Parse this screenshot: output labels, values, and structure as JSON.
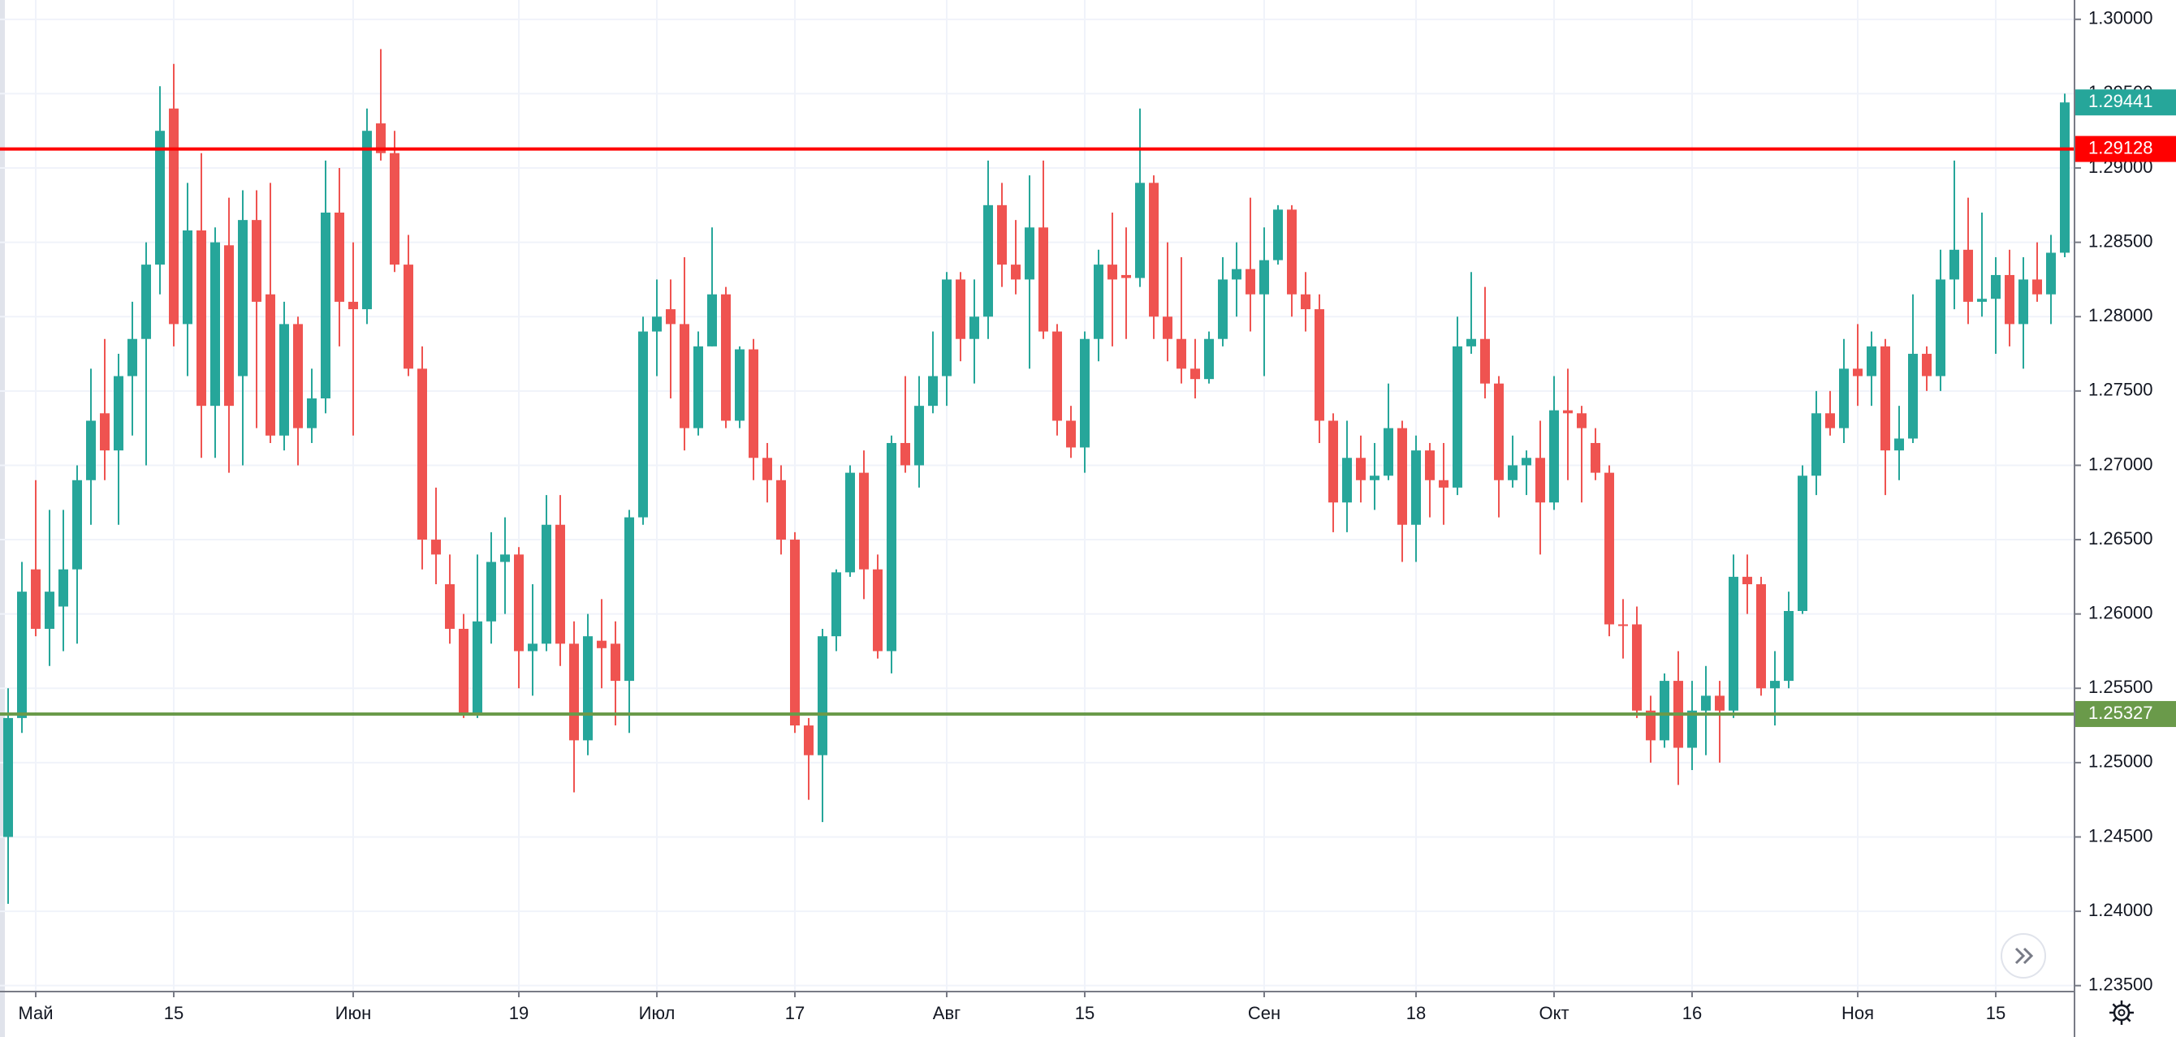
{
  "chart_data": {
    "type": "candlestick",
    "categories": [
      null,
      null,
      "Май",
      null,
      null,
      null,
      null,
      null,
      null,
      null,
      null,
      null,
      "15",
      null,
      null,
      null,
      null,
      null,
      null,
      null,
      null,
      null,
      null,
      null,
      null,
      "Июн",
      null,
      null,
      null,
      null,
      null,
      null,
      null,
      null,
      null,
      null,
      null,
      "19",
      null,
      null,
      null,
      null,
      null,
      null,
      null,
      null,
      null,
      "Июл",
      null,
      null,
      null,
      null,
      null,
      null,
      null,
      null,
      null,
      "17",
      null,
      null,
      null,
      null,
      null,
      null,
      null,
      null,
      null,
      null,
      "Авг",
      null,
      null,
      null,
      null,
      null,
      null,
      null,
      null,
      null,
      "15",
      null,
      null,
      null,
      null,
      null,
      null,
      null,
      null,
      null,
      null,
      null,
      null,
      "Сен",
      null,
      null,
      null,
      null,
      null,
      null,
      null,
      null,
      null,
      null,
      "18",
      null,
      null,
      null,
      null,
      null,
      null,
      null,
      null,
      null,
      "Окт",
      null,
      null,
      null,
      null,
      null,
      null,
      null,
      null,
      null,
      "16",
      null,
      null,
      null,
      null,
      null,
      null,
      null,
      null,
      null,
      null,
      null,
      "Ноя",
      null,
      null,
      null,
      null,
      null,
      null,
      null,
      null,
      null,
      "15",
      null,
      null,
      null,
      null,
      null
    ],
    "ohlc": [
      [
        1.245,
        1.255,
        1.2405,
        1.253
      ],
      [
        1.253,
        1.2635,
        1.252,
        1.2615
      ],
      [
        1.263,
        1.269,
        1.2585,
        1.259
      ],
      [
        1.259,
        1.267,
        1.2565,
        1.2615
      ],
      [
        1.2605,
        1.267,
        1.2575,
        1.263
      ],
      [
        1.263,
        1.27,
        1.258,
        1.269
      ],
      [
        1.269,
        1.2765,
        1.266,
        1.273
      ],
      [
        1.2735,
        1.2785,
        1.269,
        1.271
      ],
      [
        1.271,
        1.2775,
        1.266,
        1.276
      ],
      [
        1.276,
        1.281,
        1.272,
        1.2785
      ],
      [
        1.2785,
        1.285,
        1.27,
        1.2835
      ],
      [
        1.2835,
        1.2955,
        1.2815,
        1.2925
      ],
      [
        1.294,
        1.297,
        1.278,
        1.2795
      ],
      [
        1.2795,
        1.289,
        1.276,
        1.2858
      ],
      [
        1.2858,
        1.291,
        1.2705,
        1.274
      ],
      [
        1.274,
        1.286,
        1.2705,
        1.285
      ],
      [
        1.2848,
        1.288,
        1.2695,
        1.274
      ],
      [
        1.276,
        1.2885,
        1.27,
        1.2865
      ],
      [
        1.2865,
        1.2885,
        1.2725,
        1.281
      ],
      [
        1.2815,
        1.289,
        1.2715,
        1.272
      ],
      [
        1.272,
        1.281,
        1.271,
        1.2795
      ],
      [
        1.2795,
        1.28,
        1.27,
        1.2725
      ],
      [
        1.2725,
        1.2765,
        1.2715,
        1.2745
      ],
      [
        1.2745,
        1.2905,
        1.2735,
        1.287
      ],
      [
        1.287,
        1.29,
        1.278,
        1.281
      ],
      [
        1.281,
        1.285,
        1.272,
        1.2805
      ],
      [
        1.2805,
        1.294,
        1.2795,
        1.2925
      ],
      [
        1.293,
        1.298,
        1.2905,
        1.291
      ],
      [
        1.291,
        1.2925,
        1.283,
        1.2835
      ],
      [
        1.2835,
        1.2855,
        1.276,
        1.2765
      ],
      [
        1.2765,
        1.278,
        1.263,
        1.265
      ],
      [
        1.265,
        1.2685,
        1.262,
        1.264
      ],
      [
        1.262,
        1.264,
        1.258,
        1.259
      ],
      [
        1.259,
        1.26,
        1.253,
        1.2533
      ],
      [
        1.2533,
        1.264,
        1.253,
        1.2595
      ],
      [
        1.2595,
        1.2655,
        1.258,
        1.2635
      ],
      [
        1.2635,
        1.2665,
        1.26,
        1.264
      ],
      [
        1.264,
        1.2645,
        1.255,
        1.2575
      ],
      [
        1.2575,
        1.262,
        1.2545,
        1.258
      ],
      [
        1.258,
        1.268,
        1.2575,
        1.266
      ],
      [
        1.266,
        1.268,
        1.2565,
        1.258
      ],
      [
        1.258,
        1.2595,
        1.248,
        1.2515
      ],
      [
        1.2515,
        1.26,
        1.2505,
        1.2585
      ],
      [
        1.2582,
        1.261,
        1.255,
        1.2577
      ],
      [
        1.258,
        1.2595,
        1.2525,
        1.2555
      ],
      [
        1.2555,
        1.267,
        1.252,
        1.2665
      ],
      [
        1.2665,
        1.28,
        1.266,
        1.279
      ],
      [
        1.279,
        1.2825,
        1.276,
        1.28
      ],
      [
        1.2805,
        1.2825,
        1.2745,
        1.2795
      ],
      [
        1.2795,
        1.284,
        1.271,
        1.2725
      ],
      [
        1.2725,
        1.279,
        1.272,
        1.278
      ],
      [
        1.278,
        1.286,
        1.278,
        1.2815
      ],
      [
        1.2815,
        1.282,
        1.2725,
        1.273
      ],
      [
        1.273,
        1.278,
        1.2725,
        1.2778
      ],
      [
        1.2778,
        1.2785,
        1.269,
        1.2705
      ],
      [
        1.2705,
        1.2715,
        1.2675,
        1.269
      ],
      [
        1.269,
        1.27,
        1.264,
        1.265
      ],
      [
        1.265,
        1.2655,
        1.252,
        1.2525
      ],
      [
        1.2525,
        1.253,
        1.2475,
        1.2505
      ],
      [
        1.2505,
        1.259,
        1.246,
        1.2585
      ],
      [
        1.2585,
        1.263,
        1.2575,
        1.2628
      ],
      [
        1.2628,
        1.27,
        1.2625,
        1.2695
      ],
      [
        1.2695,
        1.271,
        1.261,
        1.263
      ],
      [
        1.263,
        1.264,
        1.257,
        1.2575
      ],
      [
        1.2575,
        1.272,
        1.256,
        1.2715
      ],
      [
        1.2715,
        1.276,
        1.2695,
        1.27
      ],
      [
        1.27,
        1.276,
        1.2685,
        1.274
      ],
      [
        1.274,
        1.279,
        1.2735,
        1.276
      ],
      [
        1.276,
        1.283,
        1.274,
        1.2825
      ],
      [
        1.2825,
        1.283,
        1.277,
        1.2785
      ],
      [
        1.2785,
        1.2825,
        1.2755,
        1.28
      ],
      [
        1.28,
        1.2905,
        1.2785,
        1.2875
      ],
      [
        1.2875,
        1.289,
        1.282,
        1.2835
      ],
      [
        1.2835,
        1.2865,
        1.2815,
        1.2825
      ],
      [
        1.2825,
        1.2895,
        1.2765,
        1.286
      ],
      [
        1.286,
        1.2905,
        1.2785,
        1.279
      ],
      [
        1.279,
        1.2795,
        1.272,
        1.273
      ],
      [
        1.273,
        1.274,
        1.2705,
        1.2712
      ],
      [
        1.2712,
        1.279,
        1.2695,
        1.2785
      ],
      [
        1.2785,
        1.2845,
        1.277,
        1.2835
      ],
      [
        1.2835,
        1.287,
        1.278,
        1.2825
      ],
      [
        1.2828,
        1.286,
        1.2785,
        1.2826
      ],
      [
        1.2826,
        1.294,
        1.282,
        1.289
      ],
      [
        1.289,
        1.2895,
        1.2785,
        1.28
      ],
      [
        1.28,
        1.285,
        1.277,
        1.2785
      ],
      [
        1.2785,
        1.284,
        1.2755,
        1.2765
      ],
      [
        1.2765,
        1.2785,
        1.2745,
        1.2758
      ],
      [
        1.2758,
        1.279,
        1.2755,
        1.2785
      ],
      [
        1.2785,
        1.284,
        1.278,
        1.2825
      ],
      [
        1.2825,
        1.285,
        1.28,
        1.2832
      ],
      [
        1.2832,
        1.288,
        1.279,
        1.2815
      ],
      [
        1.2815,
        1.286,
        1.276,
        1.2838
      ],
      [
        1.2838,
        1.2875,
        1.2835,
        1.2872
      ],
      [
        1.2872,
        1.2875,
        1.28,
        1.2815
      ],
      [
        1.2815,
        1.283,
        1.279,
        1.2805
      ],
      [
        1.2805,
        1.2815,
        1.2715,
        1.273
      ],
      [
        1.273,
        1.2735,
        1.2655,
        1.2675
      ],
      [
        1.2675,
        1.273,
        1.2655,
        1.2705
      ],
      [
        1.2705,
        1.272,
        1.2675,
        1.269
      ],
      [
        1.269,
        1.2715,
        1.267,
        1.2693
      ],
      [
        1.2693,
        1.2755,
        1.269,
        1.2725
      ],
      [
        1.2725,
        1.273,
        1.2635,
        1.266
      ],
      [
        1.266,
        1.272,
        1.2635,
        1.271
      ],
      [
        1.271,
        1.2715,
        1.2665,
        1.269
      ],
      [
        1.269,
        1.2715,
        1.266,
        1.2685
      ],
      [
        1.2685,
        1.28,
        1.268,
        1.278
      ],
      [
        1.278,
        1.283,
        1.2775,
        1.2785
      ],
      [
        1.2785,
        1.282,
        1.2745,
        1.2755
      ],
      [
        1.2755,
        1.276,
        1.2665,
        1.269
      ],
      [
        1.269,
        1.272,
        1.2685,
        1.27
      ],
      [
        1.27,
        1.271,
        1.268,
        1.2705
      ],
      [
        1.2705,
        1.273,
        1.264,
        1.2675
      ],
      [
        1.2675,
        1.276,
        1.267,
        1.2737
      ],
      [
        1.2737,
        1.2765,
        1.269,
        1.2735
      ],
      [
        1.2735,
        1.274,
        1.2675,
        1.2725
      ],
      [
        1.2715,
        1.2725,
        1.269,
        1.2695
      ],
      [
        1.2695,
        1.27,
        1.2585,
        1.2593
      ],
      [
        1.2593,
        1.261,
        1.257,
        1.2592
      ],
      [
        1.2593,
        1.2605,
        1.253,
        1.2535
      ],
      [
        1.2535,
        1.2545,
        1.25,
        1.2515
      ],
      [
        1.2515,
        1.256,
        1.251,
        1.2555
      ],
      [
        1.2555,
        1.2575,
        1.2485,
        1.251
      ],
      [
        1.251,
        1.2555,
        1.2495,
        1.2535
      ],
      [
        1.2535,
        1.2565,
        1.2505,
        1.2545
      ],
      [
        1.2545,
        1.2555,
        1.25,
        1.2535
      ],
      [
        1.2535,
        1.264,
        1.253,
        1.2625
      ],
      [
        1.2625,
        1.264,
        1.26,
        1.262
      ],
      [
        1.262,
        1.2625,
        1.2545,
        1.255
      ],
      [
        1.255,
        1.2575,
        1.2525,
        1.2555
      ],
      [
        1.2555,
        1.2615,
        1.255,
        1.2602
      ],
      [
        1.2602,
        1.27,
        1.26,
        1.2693
      ],
      [
        1.2693,
        1.275,
        1.268,
        1.2735
      ],
      [
        1.2735,
        1.275,
        1.272,
        1.2725
      ],
      [
        1.2725,
        1.2785,
        1.2715,
        1.2765
      ],
      [
        1.2765,
        1.2795,
        1.274,
        1.276
      ],
      [
        1.276,
        1.279,
        1.274,
        1.278
      ],
      [
        1.278,
        1.2785,
        1.268,
        1.271
      ],
      [
        1.271,
        1.274,
        1.269,
        1.2718
      ],
      [
        1.2718,
        1.2815,
        1.2715,
        1.2775
      ],
      [
        1.2775,
        1.278,
        1.275,
        1.276
      ],
      [
        1.276,
        1.2845,
        1.275,
        1.2825
      ],
      [
        1.2825,
        1.2905,
        1.2805,
        1.2845
      ],
      [
        1.2845,
        1.288,
        1.2795,
        1.281
      ],
      [
        1.281,
        1.287,
        1.28,
        1.2812
      ],
      [
        1.2812,
        1.284,
        1.2775,
        1.2828
      ],
      [
        1.2828,
        1.2845,
        1.278,
        1.2795
      ],
      [
        1.2795,
        1.284,
        1.2765,
        1.2825
      ],
      [
        1.2825,
        1.285,
        1.281,
        1.2815
      ],
      [
        1.2815,
        1.2855,
        1.2795,
        1.2843
      ],
      [
        1.2843,
        1.295,
        1.284,
        1.29441
      ]
    ],
    "up_color": "#26a69a",
    "down_color": "#ef5350",
    "ylim": [
      1.2346,
      1.3013
    ],
    "yticks": [
      {
        "value": 1.3,
        "label": "1.30000"
      },
      {
        "value": 1.295,
        "label": "1.29500"
      },
      {
        "value": 1.29,
        "label": "1.29000"
      },
      {
        "value": 1.285,
        "label": "1.28500"
      },
      {
        "value": 1.28,
        "label": "1.28000"
      },
      {
        "value": 1.275,
        "label": "1.27500"
      },
      {
        "value": 1.27,
        "label": "1.27000"
      },
      {
        "value": 1.265,
        "label": "1.26500"
      },
      {
        "value": 1.26,
        "label": "1.26000"
      },
      {
        "value": 1.255,
        "label": "1.25500"
      },
      {
        "value": 1.25,
        "label": "1.25000"
      },
      {
        "value": 1.245,
        "label": "1.24500"
      },
      {
        "value": 1.24,
        "label": "1.24000"
      },
      {
        "value": 1.235,
        "label": "1.23500"
      }
    ],
    "levels": [
      {
        "value": 1.29128,
        "color": "#ff0000"
      },
      {
        "value": 1.25327,
        "color": "#6a9a4a"
      }
    ],
    "grid": true
  }
}
